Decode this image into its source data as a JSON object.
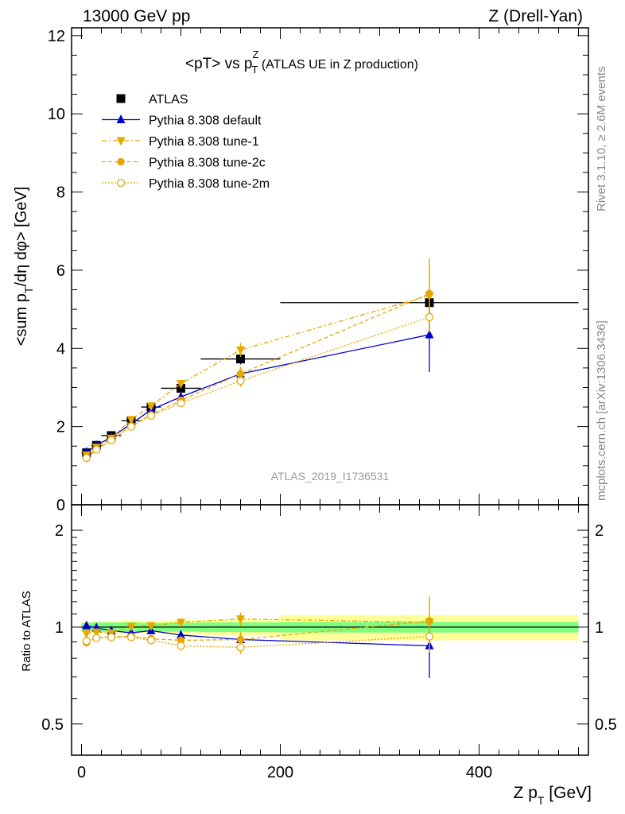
{
  "header": {
    "left": "13000 GeV pp",
    "right": "Z (Drell-Yan)"
  },
  "side_labels": {
    "rivet": "Rivet 3.1.10, ≥ 2.6M events",
    "mcplots": "mcplots.cern.ch [arXiv:1306.3436]"
  },
  "colors": {
    "atlas": "#000000",
    "default": "#0000cc",
    "tune": "#e6a800",
    "band_inner": "#7fff7f",
    "band_outer": "#ffff99"
  },
  "chart_data": [
    {
      "type": "line",
      "title_parts": {
        "pre": "<pT> vs p",
        "sup": "Z",
        "sub": "T",
        "post": " (ATLAS UE in Z production)"
      },
      "ylabel_parts": {
        "a": "<sum p",
        "sub": "T",
        "b": "/dη dφ> [GeV]"
      },
      "watermark": "ATLAS_2019_I1736531",
      "xlim": [
        -10,
        510
      ],
      "ylim": [
        0,
        12.2
      ],
      "yticks": [
        0,
        2,
        4,
        6,
        8,
        10,
        12
      ],
      "grid": false,
      "legend_position": "top-left",
      "legend": [
        {
          "label": "ATLAS",
          "marker": "square",
          "color": "#000000",
          "dash": ""
        },
        {
          "label": "Pythia 8.308 default",
          "marker": "triangle-up",
          "color": "#0000cc",
          "dash": ""
        },
        {
          "label": "Pythia 8.308 tune-1",
          "marker": "triangle-down",
          "color": "#e6a800",
          "dash": "6,3,2,3"
        },
        {
          "label": "Pythia 8.308 tune-2c",
          "marker": "circle",
          "color": "#e6a800",
          "dash": "5,3"
        },
        {
          "label": "Pythia 8.308 tune-2m",
          "marker": "circle-open",
          "color": "#e6a800",
          "dash": "2,2"
        }
      ],
      "series": [
        {
          "name": "ATLAS",
          "marker": "square",
          "color": "#000000",
          "line": false,
          "x": [
            5,
            15,
            30,
            50,
            70,
            100,
            160,
            350
          ],
          "y": [
            1.33,
            1.52,
            1.77,
            2.15,
            2.5,
            2.98,
            3.73,
            5.17
          ],
          "err": [
            0.05,
            0.06,
            0.06,
            0.08,
            0.08,
            0.1,
            0.14,
            0.2
          ],
          "xerr": [
            5,
            5,
            10,
            10,
            10,
            20,
            40,
            150
          ]
        },
        {
          "name": "Pythia 8.308 default",
          "marker": "triangle-up",
          "color": "#0000cc",
          "line": true,
          "dash": "",
          "x": [
            5,
            15,
            30,
            50,
            70,
            100,
            160,
            350
          ],
          "y": [
            1.35,
            1.52,
            1.73,
            2.07,
            2.43,
            2.76,
            3.35,
            4.35
          ],
          "err": [
            0.02,
            0.02,
            0.03,
            0.04,
            0.05,
            0.07,
            0.15,
            0.95
          ]
        },
        {
          "name": "Pythia 8.308 tune-1",
          "marker": "triangle-down",
          "color": "#e6a800",
          "line": true,
          "dash": "6,3,2,3",
          "x": [
            5,
            15,
            30,
            50,
            70,
            100,
            160,
            350
          ],
          "y": [
            1.27,
            1.47,
            1.7,
            2.18,
            2.53,
            3.1,
            3.96,
            5.35
          ],
          "err": [
            0.02,
            0.02,
            0.03,
            0.04,
            0.05,
            0.08,
            0.18,
            0.95
          ]
        },
        {
          "name": "Pythia 8.308 tune-2c",
          "marker": "circle",
          "color": "#e6a800",
          "line": true,
          "dash": "5,3",
          "x": [
            5,
            15,
            30,
            50,
            70,
            100,
            160,
            350
          ],
          "y": [
            1.19,
            1.41,
            1.66,
            2.02,
            2.3,
            2.67,
            3.35,
            5.4
          ],
          "err": [
            0.02,
            0.02,
            0.03,
            0.04,
            0.05,
            0.08,
            0.18,
            0.8
          ]
        },
        {
          "name": "Pythia 8.308 tune-2m",
          "marker": "circle-open",
          "color": "#e6a800",
          "line": true,
          "dash": "2,2",
          "x": [
            5,
            15,
            30,
            50,
            70,
            100,
            160,
            350
          ],
          "y": [
            1.2,
            1.41,
            1.65,
            2.0,
            2.28,
            2.6,
            3.17,
            4.8
          ],
          "err": [
            0.02,
            0.02,
            0.03,
            0.04,
            0.05,
            0.08,
            0.15,
            0.35
          ]
        }
      ]
    },
    {
      "type": "line",
      "ylabel": "Ratio to ATLAS",
      "xlabel_parts": {
        "a": "Z p",
        "sub": "T",
        "b": " [GeV]"
      },
      "xlim": [
        -10,
        510
      ],
      "xticks": [
        0,
        200,
        400
      ],
      "ylim": [
        0.4,
        2.4
      ],
      "yscale": "log",
      "yticks": [
        0.5,
        1,
        2
      ],
      "grid": false,
      "band": {
        "x_edges": [
          0,
          10,
          20,
          40,
          60,
          80,
          120,
          200,
          500
        ],
        "inner": [
          0.03,
          0.035,
          0.033,
          0.035,
          0.03,
          0.032,
          0.035,
          0.038
        ],
        "outer": [
          0.04,
          0.045,
          0.045,
          0.05,
          0.045,
          0.05,
          0.055,
          0.09
        ]
      },
      "series": [
        {
          "name": "Pythia 8.308 default",
          "marker": "triangle-up",
          "color": "#0000cc",
          "line": true,
          "dash": "",
          "x": [
            5,
            15,
            30,
            50,
            70,
            100,
            160,
            350
          ],
          "y": [
            1.01,
            0.995,
            0.975,
            0.96,
            0.975,
            0.945,
            0.915,
            0.875
          ],
          "err": [
            0.015,
            0.015,
            0.015,
            0.015,
            0.02,
            0.03,
            0.04,
            0.18
          ]
        },
        {
          "name": "Pythia 8.308 tune-1",
          "marker": "triangle-down",
          "color": "#e6a800",
          "line": true,
          "dash": "6,3,2,3",
          "x": [
            5,
            15,
            30,
            50,
            70,
            100,
            160,
            350
          ],
          "y": [
            0.955,
            0.965,
            0.96,
            1.005,
            1.01,
            1.035,
            1.06,
            1.035
          ],
          "err": [
            0.015,
            0.015,
            0.015,
            0.015,
            0.02,
            0.03,
            0.05,
            0.2
          ]
        },
        {
          "name": "Pythia 8.308 tune-2c",
          "marker": "circle",
          "color": "#e6a800",
          "line": true,
          "dash": "5,3",
          "x": [
            5,
            15,
            30,
            50,
            70,
            100,
            160,
            350
          ],
          "y": [
            0.895,
            0.925,
            0.935,
            0.935,
            0.92,
            0.91,
            0.915,
            1.045
          ],
          "err": [
            0.015,
            0.015,
            0.015,
            0.015,
            0.02,
            0.03,
            0.05,
            0.2
          ]
        },
        {
          "name": "Pythia 8.308 tune-2m",
          "marker": "circle-open",
          "color": "#e6a800",
          "line": true,
          "dash": "2,2",
          "x": [
            5,
            15,
            30,
            50,
            70,
            100,
            160,
            350
          ],
          "y": [
            0.905,
            0.925,
            0.93,
            0.93,
            0.91,
            0.875,
            0.865,
            0.935
          ],
          "err": [
            0.015,
            0.015,
            0.015,
            0.015,
            0.02,
            0.03,
            0.04,
            0.08
          ]
        }
      ]
    }
  ]
}
